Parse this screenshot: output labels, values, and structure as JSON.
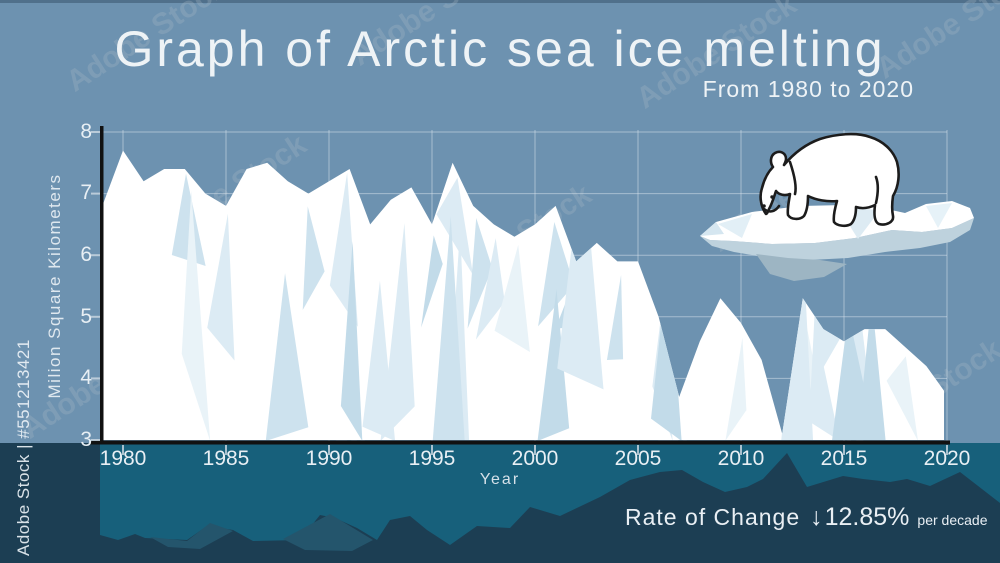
{
  "header": {
    "title": "Graph of Arctic sea ice melting",
    "subtitle": "From 1980 to 2020"
  },
  "axes": {
    "y_title": "Milion Square Kilometers",
    "x_title": "Year",
    "y_tick_labels": [
      "8",
      "7",
      "6",
      "5",
      "4",
      "3"
    ],
    "x_tick_labels": [
      "1980",
      "1985",
      "1990",
      "1995",
      "2000",
      "2005",
      "2010",
      "2015",
      "2020"
    ]
  },
  "rate": {
    "label": "Rate of Change",
    "arrow": "↓",
    "value": "12.85%",
    "unit": "per decade"
  },
  "watermark": {
    "text": "Adobe Stock",
    "id_text": "Adobe Stock | #551213421"
  },
  "colors": {
    "sky_blue": "#6d92b0",
    "top_strip": "#50708b",
    "ice_white": "#ffffff",
    "ice_facet_light": "#dcebf4",
    "ice_facet_mid": "#cde2ee",
    "ice_facet_deep": "#c2dbe9",
    "floe_underside": "#bed2dd",
    "floe_underside_deep": "#9db5c3",
    "water_teal": "#17607b",
    "water_dark": "#1c3e53",
    "water_mid": "#24556c",
    "axis_black": "#111111",
    "text_light": "#eef3f6"
  },
  "chart_data": {
    "type": "area",
    "title": "Graph of Arctic sea ice melting",
    "subtitle": "From 1980 to 2020",
    "xlabel": "Year",
    "ylabel": "Milion Square Kilometers",
    "xlim": [
      1980,
      2020
    ],
    "ylim": [
      3,
      8
    ],
    "grid": true,
    "x_ticks": [
      1980,
      1985,
      1990,
      1995,
      2000,
      2005,
      2010,
      2015,
      2020
    ],
    "y_ticks": [
      8,
      7,
      6,
      5,
      4,
      3
    ],
    "start_edge_value": 6.7,
    "x": [
      1980,
      1981,
      1982,
      1983,
      1984,
      1985,
      1986,
      1987,
      1988,
      1989,
      1990,
      1991,
      1992,
      1993,
      1994,
      1995,
      1996,
      1997,
      1998,
      1999,
      2000,
      2001,
      2002,
      2003,
      2004,
      2005,
      2006,
      2007,
      2008,
      2009,
      2010,
      2011,
      2012,
      2013,
      2014,
      2015,
      2016,
      2017,
      2018,
      2019,
      2020
    ],
    "values": [
      7.7,
      7.2,
      7.4,
      7.4,
      7.0,
      6.8,
      7.4,
      7.5,
      7.2,
      7.0,
      7.2,
      7.4,
      6.5,
      6.9,
      7.1,
      6.5,
      7.5,
      6.8,
      6.5,
      6.3,
      6.5,
      6.8,
      5.9,
      6.2,
      5.9,
      5.9,
      5.0,
      3.7,
      4.6,
      5.3,
      4.9,
      4.3,
      3.1,
      5.3,
      4.8,
      4.6,
      4.8,
      4.8,
      4.5,
      4.2,
      3.8
    ],
    "annotations": {
      "rate_of_change_label": "Rate of Change",
      "rate_of_change_direction": "down",
      "rate_of_change_value": "12.85%",
      "rate_of_change_unit": "per decade"
    }
  }
}
